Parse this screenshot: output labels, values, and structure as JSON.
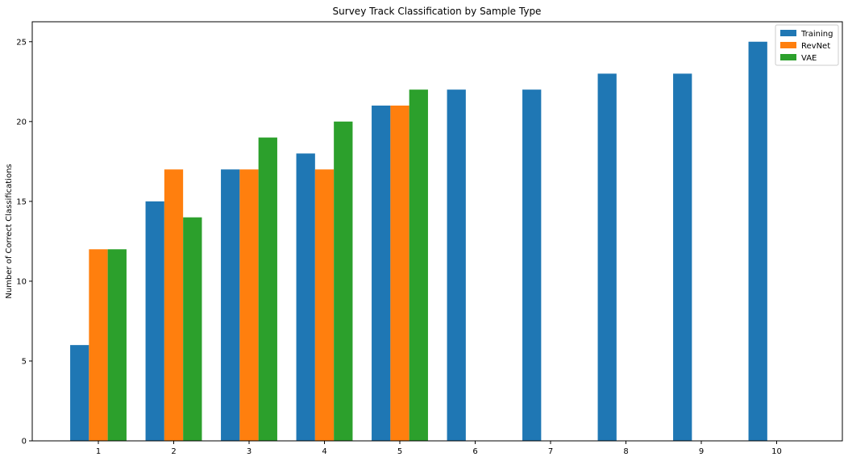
{
  "chart_data": {
    "type": "bar",
    "title": "Survey Track Classification by Sample Type",
    "xlabel": "",
    "ylabel": "Number of Correct Classifications",
    "categories": [
      "1",
      "2",
      "3",
      "4",
      "5",
      "6",
      "7",
      "8",
      "9",
      "10"
    ],
    "series": [
      {
        "name": "Training",
        "color": "#1f77b4",
        "values": [
          6,
          15,
          17,
          18,
          21,
          22,
          22,
          23,
          23,
          25
        ]
      },
      {
        "name": "RevNet",
        "color": "#ff7f0e",
        "values": [
          12,
          17,
          17,
          17,
          21,
          null,
          null,
          null,
          null,
          null
        ]
      },
      {
        "name": "VAE",
        "color": "#2ca02c",
        "values": [
          12,
          14,
          19,
          20,
          22,
          null,
          null,
          null,
          null,
          null
        ]
      }
    ],
    "ylim": [
      0,
      26.25
    ],
    "yticks": [
      0,
      5,
      10,
      15,
      20,
      25
    ],
    "grid": false,
    "legend_position": "top-right"
  }
}
